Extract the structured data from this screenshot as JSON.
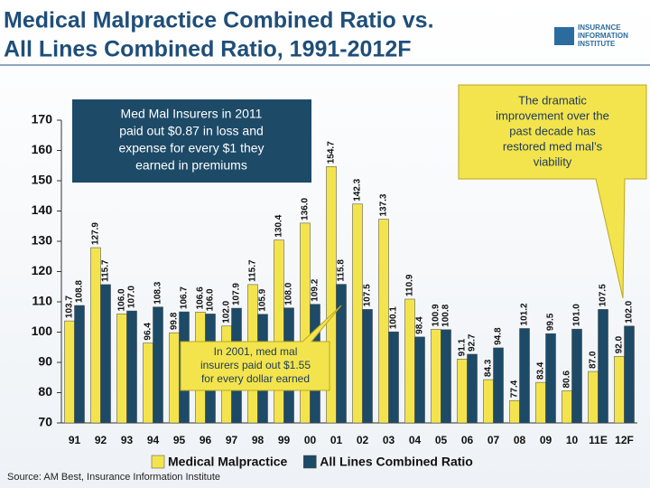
{
  "chart_data": {
    "type": "bar",
    "title": [
      "Medical Malpractice Combined Ratio vs.",
      "All Lines Combined Ratio, 1991-2012F"
    ],
    "logo": [
      "INSURANCE",
      "INFORMATION",
      "INSTITUTE"
    ],
    "categories": [
      "91",
      "92",
      "93",
      "94",
      "95",
      "96",
      "97",
      "98",
      "99",
      "00",
      "01",
      "02",
      "03",
      "04",
      "05",
      "06",
      "07",
      "08",
      "09",
      "10",
      "11E",
      "12F"
    ],
    "series": [
      {
        "name": "Medical Malpractice",
        "color": "#f3e44e",
        "values": [
          103.7,
          127.9,
          106.0,
          96.4,
          99.8,
          106.6,
          102.0,
          115.7,
          130.4,
          136.0,
          154.7,
          142.3,
          137.3,
          110.9,
          100.9,
          91.1,
          84.3,
          77.4,
          83.4,
          80.6,
          87.0,
          92.0
        ],
        "value_labels": [
          "103.7",
          "127.9",
          "106.0",
          "96.4",
          "99.8",
          "106.6",
          "102.0",
          "115.7",
          "130.4",
          "136.0",
          "154.7",
          "142.3",
          "137.3",
          "110.9",
          "100.9",
          "91.1",
          "84.3",
          "77.4",
          "83.4",
          "80.6",
          "87.0",
          "92.0"
        ]
      },
      {
        "name": "All Lines Combined Ratio",
        "color": "#1d4a67",
        "values": [
          108.8,
          115.7,
          107.0,
          108.3,
          106.7,
          106.0,
          107.9,
          105.9,
          108.0,
          109.2,
          115.8,
          107.5,
          100.1,
          98.4,
          100.8,
          92.7,
          94.8,
          101.2,
          99.5,
          101.0,
          107.5,
          102.0
        ],
        "value_labels": [
          "108.8",
          "115.7",
          "107.0",
          "108.3",
          "106.7",
          "106.0",
          "107.9",
          "105.9",
          "108.0",
          "109.2",
          "115.8",
          "107.5",
          "100.1",
          "98.4",
          "100.8",
          "92.7",
          "94.8",
          "101.2",
          "99.5",
          "101.0",
          "107.5",
          "102.0"
        ]
      }
    ],
    "ylim": [
      70,
      170
    ],
    "yticks": [
      70,
      80,
      90,
      100,
      110,
      120,
      130,
      140,
      150,
      160,
      170
    ],
    "annotations": [
      [
        "Med Mal Insurers in 2011",
        "paid out $0.87 in loss and",
        "expense for every $1 they",
        "earned in premiums"
      ],
      [
        "In 2001, med mal",
        "insurers paid out $1.55",
        "for every dollar earned"
      ],
      [
        "The dramatic",
        "improvement over the",
        "past decade has",
        "restored med mal’s",
        "viability"
      ]
    ],
    "source": "Source: AM Best, Insurance Information Institute"
  }
}
